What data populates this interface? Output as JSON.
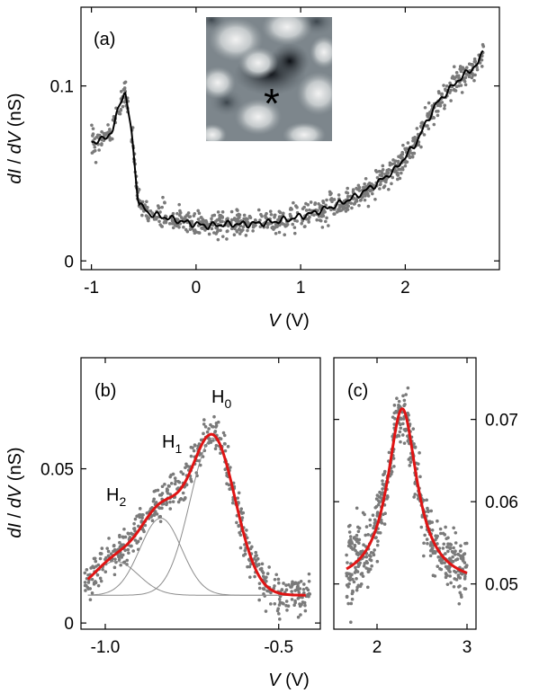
{
  "colors": {
    "scatter": "#7a7a7a",
    "fit": "#e01414",
    "component": "#8c8c8c",
    "trace": "#000000",
    "marker": "#e01414"
  },
  "panels": [
    {
      "id": "a",
      "label": "(a)"
    },
    {
      "id": "b",
      "label": "(b)"
    },
    {
      "id": "c",
      "label": "(c)"
    }
  ],
  "axis_text": {
    "ylabel_dI": "dI",
    "ylabel_slash": " / ",
    "ylabel_dV": "dV",
    "ylabel_unit": " (nS)",
    "xlabel_V": "V",
    "xlabel_unit": " (V)"
  },
  "peak_labels": [
    {
      "name": "H",
      "sub": "0"
    },
    {
      "name": "H",
      "sub": "1"
    },
    {
      "name": "H",
      "sub": "2"
    }
  ],
  "inset": {
    "marker": "*"
  },
  "chart_data": [
    {
      "panel": "a",
      "type": "scatter",
      "xlabel": "V (V)",
      "ylabel": "dI / dV (nS)",
      "xlim": [
        -1.1,
        2.9
      ],
      "ylim": [
        -0.005,
        0.145
      ],
      "xticks": [
        -1,
        0,
        1,
        2
      ],
      "xtick_labels": [
        "-1",
        "0",
        "1",
        "2"
      ],
      "yticks": [
        0,
        0.1
      ],
      "ytick_labels": [
        "0",
        "0.1"
      ],
      "series": [
        {
          "kind": "smoothed line",
          "x": [
            -1.0,
            -0.9,
            -0.8,
            -0.72,
            -0.68,
            -0.62,
            -0.55,
            -0.45,
            -0.3,
            -0.1,
            0.1,
            0.3,
            0.5,
            0.7,
            0.9,
            1.1,
            1.3,
            1.5,
            1.7,
            1.9,
            2.1,
            2.2,
            2.3,
            2.5,
            2.6,
            2.7,
            2.75
          ],
          "y": [
            0.068,
            0.069,
            0.074,
            0.092,
            0.097,
            0.075,
            0.033,
            0.027,
            0.025,
            0.022,
            0.02,
            0.021,
            0.021,
            0.022,
            0.024,
            0.027,
            0.031,
            0.036,
            0.043,
            0.052,
            0.067,
            0.079,
            0.09,
            0.103,
            0.108,
            0.113,
            0.121
          ]
        },
        {
          "kind": "raw points (scattered around the smoothed line, noise ~0.004 nS)"
        }
      ]
    },
    {
      "panel": "b",
      "type": "scatter",
      "xlabel": "V (V)",
      "ylabel": "dI / dV (nS)",
      "xlim": [
        -1.07,
        -0.38
      ],
      "ylim": [
        -0.002,
        0.086
      ],
      "xticks": [
        -1.0,
        -0.5
      ],
      "xtick_labels": [
        "-1.0",
        "-0.5"
      ],
      "yticks": [
        0,
        0.05
      ],
      "ytick_labels": [
        "0",
        "0.05"
      ],
      "fit": {
        "baseline": 0.009,
        "components": [
          {
            "label": "H0",
            "center": -0.69,
            "amplitude": 0.051,
            "width": 0.065
          },
          {
            "label": "H1",
            "center": -0.84,
            "amplitude": 0.025,
            "width": 0.06
          },
          {
            "label": "H2",
            "center": -0.97,
            "amplitude": 0.011,
            "width": 0.065
          }
        ]
      }
    },
    {
      "panel": "c",
      "type": "scatter",
      "xlabel": "",
      "ylabel": "",
      "xlim": [
        1.52,
        3.1
      ],
      "ylim": [
        0.0445,
        0.0775
      ],
      "xticks": [
        2,
        3
      ],
      "xtick_labels": [
        "2",
        "3"
      ],
      "yticks": [
        0.05,
        0.06,
        0.07
      ],
      "ytick_labels": [
        "0.05",
        "0.06",
        "0.07"
      ],
      "fit": {
        "type": "lorentzian",
        "center": 2.28,
        "amplitude": 0.0215,
        "hwhm": 0.2,
        "baseline": 0.0498
      }
    }
  ]
}
